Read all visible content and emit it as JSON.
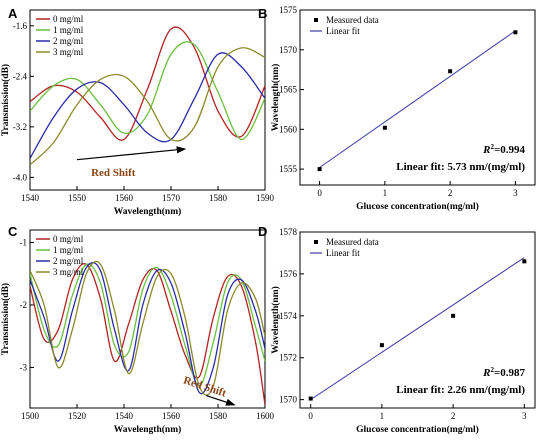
{
  "chart_data": [
    {
      "panel": "A",
      "type": "line",
      "xlabel": "Wavelength(nm)",
      "ylabel": "Transmission(dB)",
      "xlim": [
        1540,
        1590
      ],
      "ylim": [
        -4.2,
        -1.35
      ],
      "xticks": [
        1540,
        1550,
        1560,
        1570,
        1580,
        1590
      ],
      "yticks": [
        -1.6,
        -2.4,
        -3.2,
        -4.0
      ],
      "annotation": "Red Shift",
      "annotation_color": "#8b4513",
      "legend_position": "top-left",
      "series": [
        {
          "name": "0 mg/ml",
          "color": "#b22222",
          "x": [
            1540,
            1545,
            1550,
            1555,
            1560,
            1565,
            1570,
            1575,
            1580,
            1585,
            1590
          ],
          "y": [
            -2.8,
            -2.55,
            -2.65,
            -3.05,
            -3.4,
            -2.6,
            -1.65,
            -1.95,
            -2.95,
            -3.35,
            -2.55
          ]
        },
        {
          "name": "1 mg/ml",
          "color": "#6abf40",
          "x": [
            1540,
            1545,
            1550,
            1555,
            1560,
            1565,
            1570,
            1575,
            1580,
            1585,
            1590
          ],
          "y": [
            -2.95,
            -2.55,
            -2.45,
            -2.85,
            -3.3,
            -3.0,
            -2.05,
            -1.9,
            -2.65,
            -3.4,
            -2.75
          ]
        },
        {
          "name": "2 mg/ml",
          "color": "#2a2aa8",
          "x": [
            1540,
            1545,
            1550,
            1555,
            1560,
            1565,
            1570,
            1575,
            1580,
            1585,
            1590
          ],
          "y": [
            -3.7,
            -3.05,
            -2.6,
            -2.5,
            -2.85,
            -3.3,
            -3.4,
            -2.75,
            -2.05,
            -2.25,
            -2.75
          ]
        },
        {
          "name": "3 mg/ml",
          "color": "#8a8a2a",
          "x": [
            1540,
            1545,
            1550,
            1555,
            1560,
            1565,
            1570,
            1575,
            1580,
            1585,
            1590
          ],
          "y": [
            -3.8,
            -3.45,
            -2.85,
            -2.45,
            -2.4,
            -2.8,
            -3.4,
            -3.2,
            -2.25,
            -1.95,
            -2.1
          ]
        }
      ]
    },
    {
      "panel": "B",
      "type": "scatter",
      "xlabel": "Glucose concentration(mg/ml)",
      "ylabel": "Wavelength(nm)",
      "xlim": [
        -0.3,
        3.3
      ],
      "ylim": [
        1553,
        1575
      ],
      "xticks": [
        0,
        1,
        2,
        3
      ],
      "yticks": [
        1555,
        1560,
        1565,
        1570,
        1575
      ],
      "x": [
        0,
        1,
        2,
        3
      ],
      "y": [
        1555.0,
        1560.2,
        1567.3,
        1572.2
      ],
      "fit": {
        "slope": 5.73,
        "intercept": 1555.2
      },
      "legend": [
        "Measured data",
        "Linear fit"
      ],
      "r2_label": "R",
      "r2_sup": "2",
      "r2_value": "=0.994",
      "fit_text": "Linear fit: 5.73 nm/(mg/ml)"
    },
    {
      "panel": "C",
      "type": "line",
      "xlabel": "Wavelength(nm)",
      "ylabel": "Transmission(dB)",
      "xlim": [
        1500,
        1600
      ],
      "ylim": [
        -3.65,
        -0.8
      ],
      "xticks": [
        1500,
        1520,
        1540,
        1560,
        1580,
        1600
      ],
      "yticks": [
        -1,
        -2,
        -3
      ],
      "annotation": "Red Shift",
      "annotation_color": "#8b4513",
      "legend_position": "top-left",
      "series": [
        {
          "name": "0 mg/ml",
          "color": "#b22222",
          "x": [
            1500,
            1506,
            1512,
            1518,
            1524,
            1530,
            1536,
            1542,
            1548,
            1554,
            1560,
            1566,
            1572,
            1578,
            1584,
            1590,
            1596,
            1600
          ],
          "y": [
            -1.7,
            -2.55,
            -2.4,
            -1.6,
            -1.35,
            -1.9,
            -2.9,
            -2.3,
            -1.6,
            -1.45,
            -2.1,
            -2.8,
            -3.15,
            -2.2,
            -1.55,
            -1.7,
            -2.6,
            -3.6
          ]
        },
        {
          "name": "1 mg/ml",
          "color": "#6abf40",
          "x": [
            1500,
            1506,
            1512,
            1518,
            1524,
            1530,
            1536,
            1542,
            1548,
            1554,
            1560,
            1566,
            1572,
            1578,
            1584,
            1590,
            1596,
            1600
          ],
          "y": [
            -1.5,
            -2.4,
            -2.65,
            -1.85,
            -1.35,
            -1.65,
            -2.65,
            -2.75,
            -1.75,
            -1.4,
            -1.85,
            -2.65,
            -3.3,
            -2.6,
            -1.65,
            -1.6,
            -2.35,
            -2.9
          ]
        },
        {
          "name": "2 mg/ml",
          "color": "#2a2aa8",
          "x": [
            1500,
            1506,
            1512,
            1518,
            1524,
            1530,
            1536,
            1542,
            1548,
            1554,
            1560,
            1566,
            1572,
            1578,
            1584,
            1590,
            1596,
            1600
          ],
          "y": [
            -1.6,
            -2.2,
            -2.9,
            -2.1,
            -1.4,
            -1.45,
            -2.4,
            -3.05,
            -2.0,
            -1.45,
            -1.65,
            -2.45,
            -3.4,
            -3.0,
            -1.85,
            -1.6,
            -2.1,
            -2.7
          ]
        },
        {
          "name": "3 mg/ml",
          "color": "#8a8a2a",
          "x": [
            1500,
            1506,
            1512,
            1518,
            1524,
            1530,
            1536,
            1542,
            1548,
            1554,
            1560,
            1566,
            1572,
            1578,
            1584,
            1590,
            1596,
            1600
          ],
          "y": [
            -1.45,
            -2.0,
            -3.0,
            -2.4,
            -1.5,
            -1.35,
            -2.1,
            -3.1,
            -2.3,
            -1.55,
            -1.5,
            -2.2,
            -3.3,
            -3.3,
            -2.1,
            -1.65,
            -1.9,
            -2.5
          ]
        }
      ]
    },
    {
      "panel": "D",
      "type": "scatter",
      "xlabel": "Glucose concentration(mg/ml)",
      "ylabel": "Wavelength(nm)",
      "xlim": [
        -0.15,
        3.15
      ],
      "ylim": [
        1569.6,
        1578
      ],
      "xticks": [
        0,
        1,
        2,
        3
      ],
      "yticks": [
        1570,
        1572,
        1574,
        1576,
        1578
      ],
      "x": [
        0,
        1,
        2,
        3
      ],
      "y": [
        1570.05,
        1572.6,
        1574.0,
        1576.6
      ],
      "fit": {
        "slope": 2.26,
        "intercept": 1570.0
      },
      "legend": [
        "Measured data",
        "Linear fit"
      ],
      "r2_label": "R",
      "r2_sup": "2",
      "r2_value": "=0.987",
      "fit_text": "Linear fit: 2.26 nm/(mg/ml)"
    }
  ]
}
